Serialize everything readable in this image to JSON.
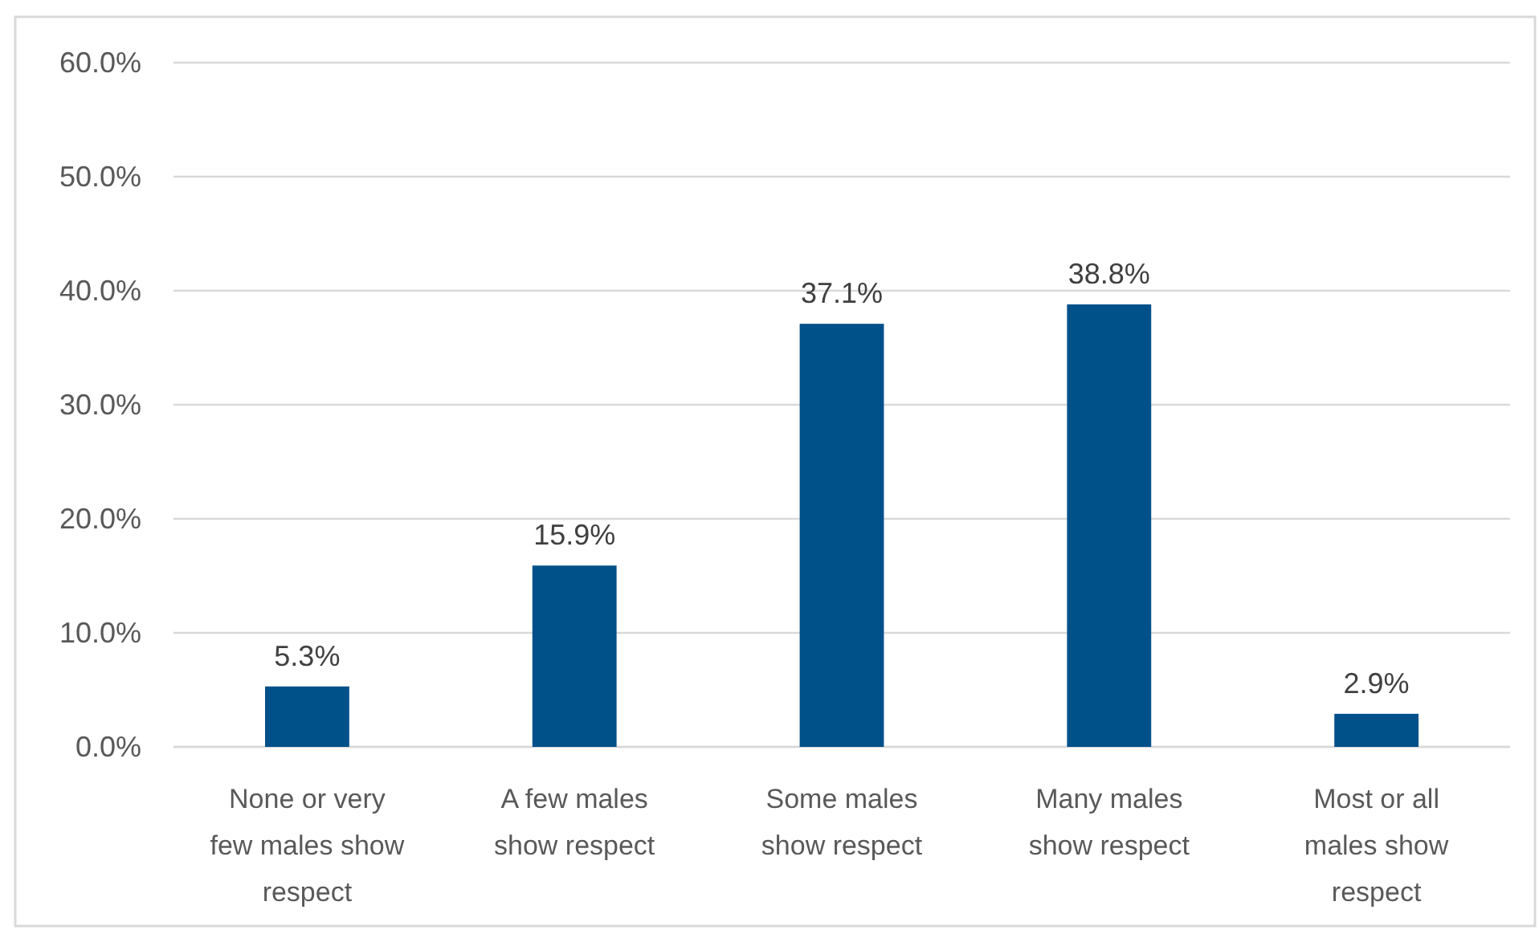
{
  "chart_data": {
    "type": "bar",
    "categories": [
      "None or very few males show respect",
      "A few males show respect",
      "Some males show respect",
      "Many males show respect",
      "Most or all males show respect"
    ],
    "values": [
      5.3,
      15.9,
      37.1,
      38.8,
      2.9
    ],
    "value_labels": [
      "5.3%",
      "15.9%",
      "37.1%",
      "38.8%",
      "2.9%"
    ],
    "color": "#00508a",
    "ylim": [
      0,
      60
    ],
    "yticks": [
      {
        "value": 0,
        "label": "0.0%"
      },
      {
        "value": 10,
        "label": "10.0%"
      },
      {
        "value": 20,
        "label": "20.0%"
      },
      {
        "value": 30,
        "label": "30.0%"
      },
      {
        "value": 40,
        "label": "40.0%"
      },
      {
        "value": 50,
        "label": "50.0%"
      },
      {
        "value": 60,
        "label": "60.0%"
      }
    ],
    "grid": "y"
  }
}
